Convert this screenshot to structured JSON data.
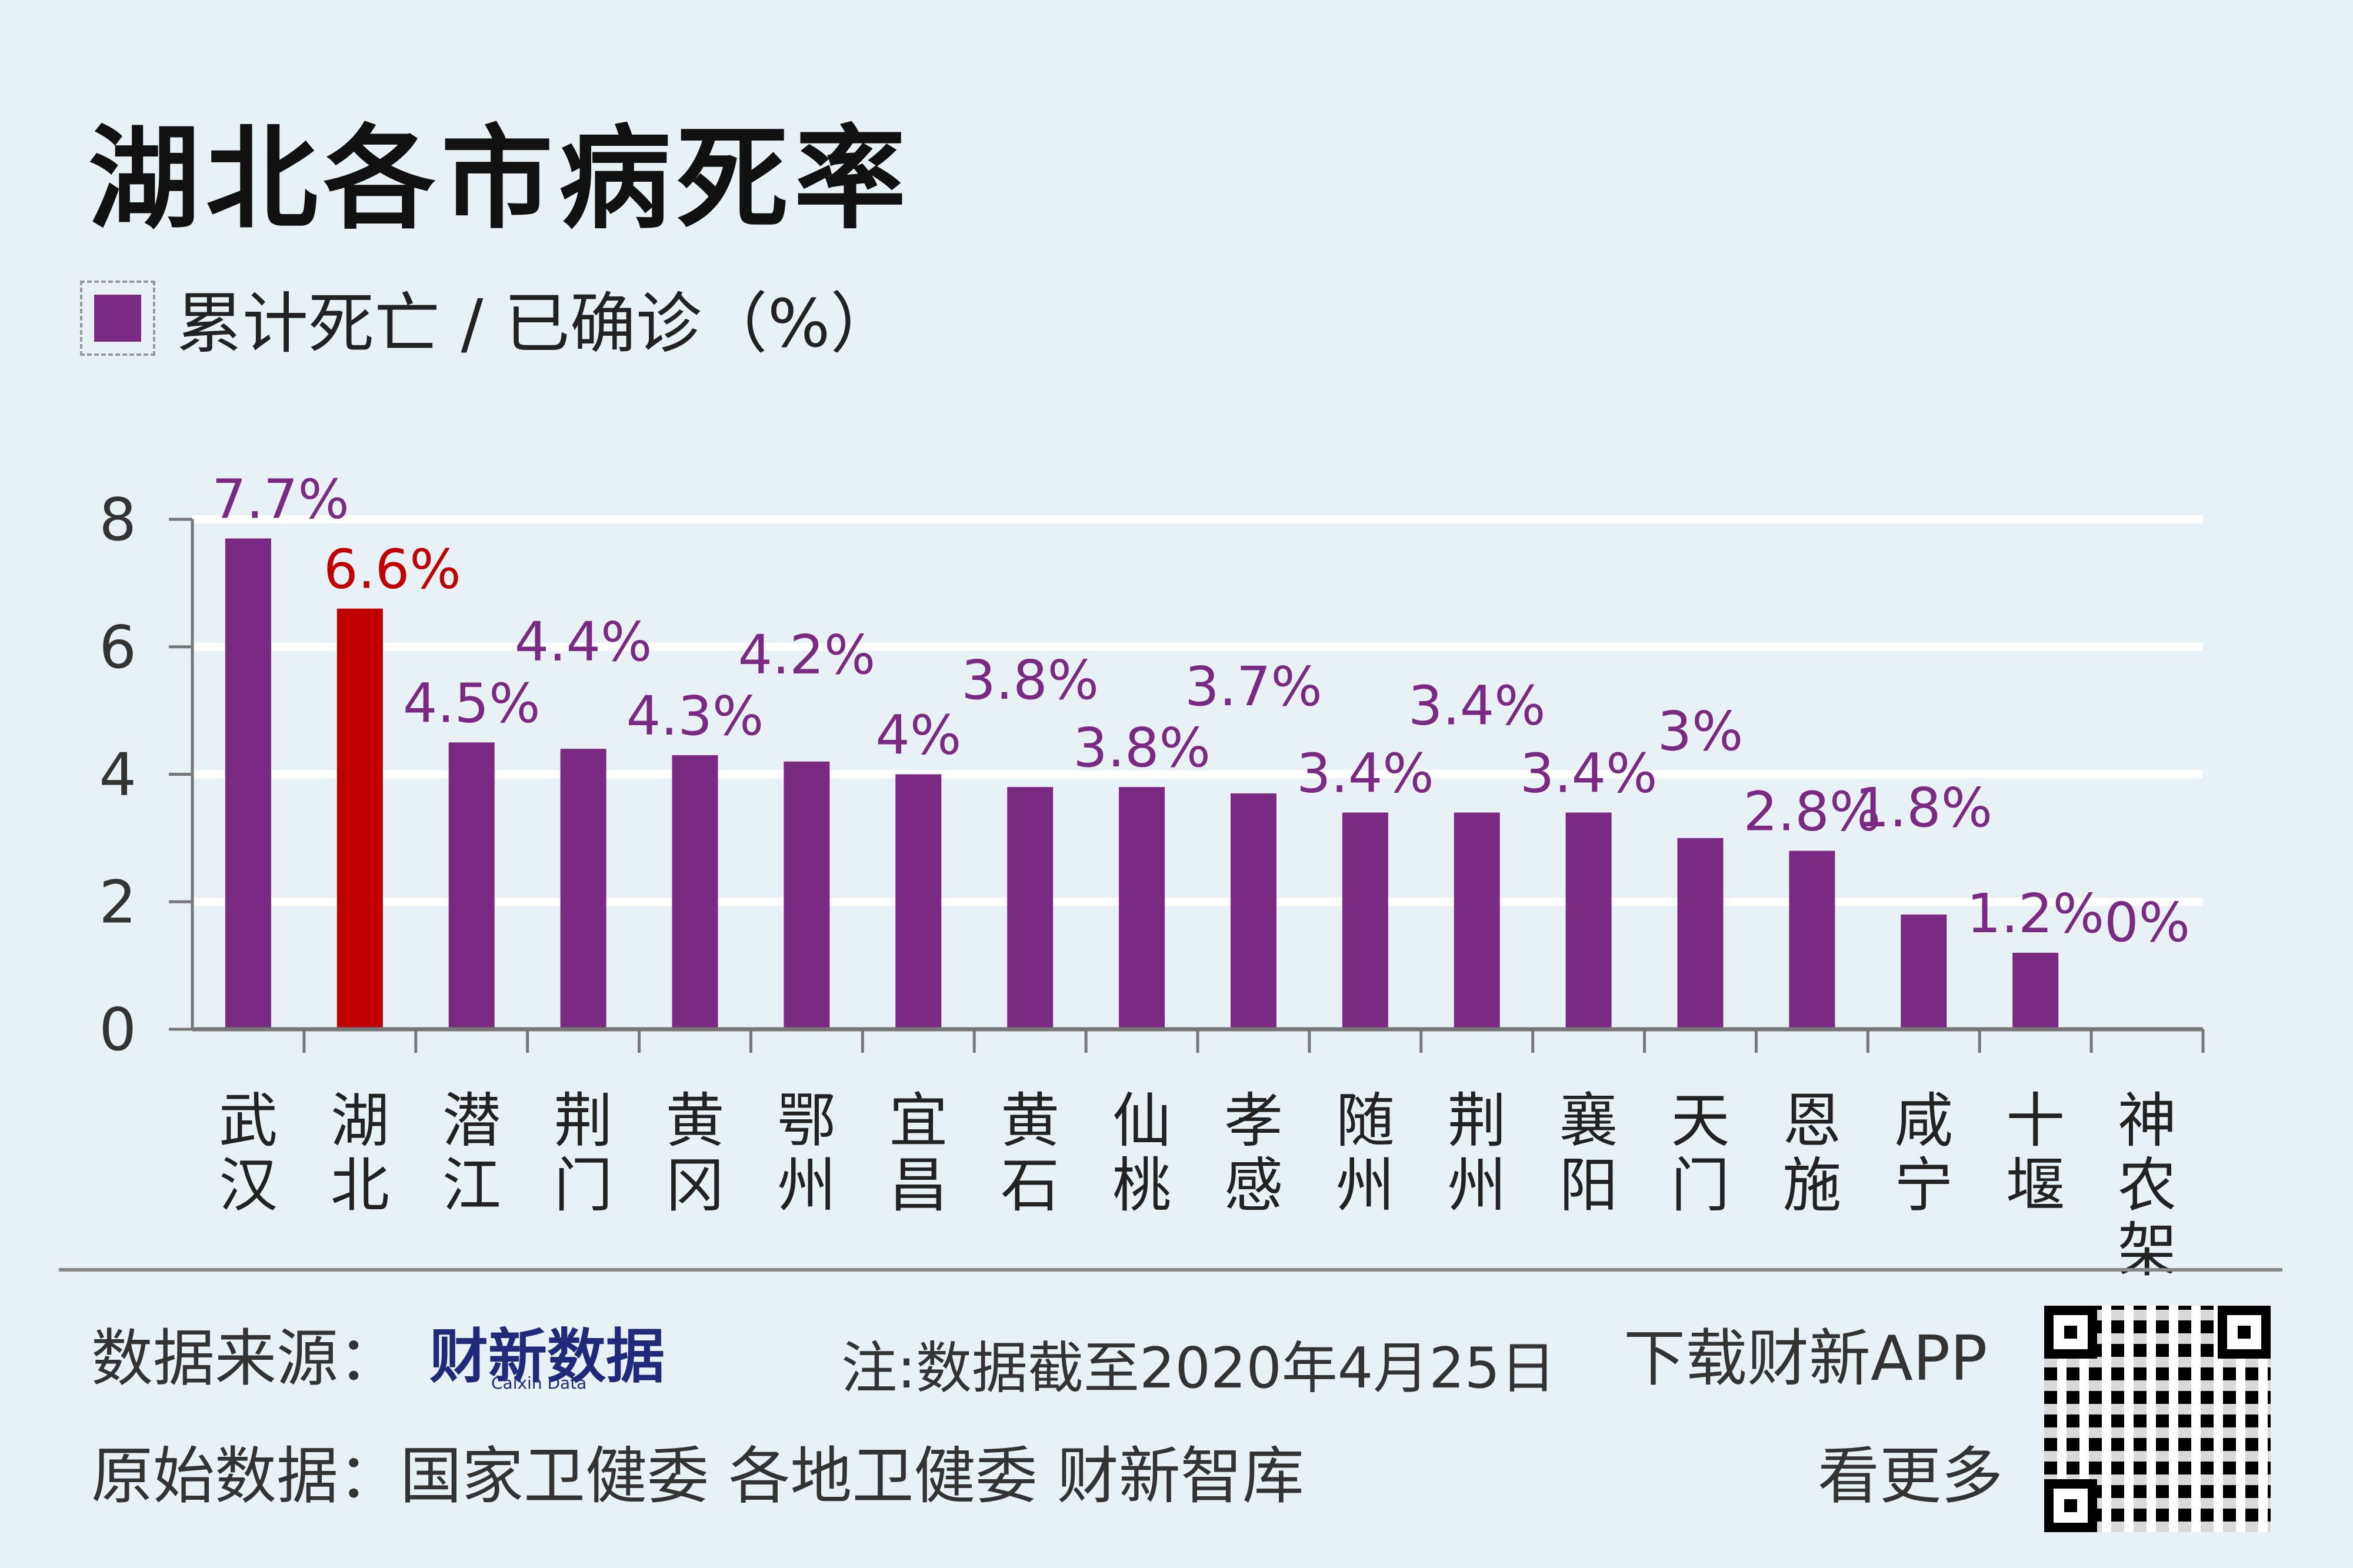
{
  "title": "湖北各市病死率",
  "legend": "累计死亡 / 已确诊（%）",
  "colors": {
    "bar": "#7b2a84",
    "highlight": "#c00000",
    "background": "#e8f1f5"
  },
  "chart_data": {
    "type": "bar",
    "title": "湖北各市病死率",
    "ylabel": "累计死亡 / 已确诊（%）",
    "xlabel": "",
    "ylim": [
      0,
      8
    ],
    "yticks": [
      "0",
      "2",
      "4",
      "6",
      "8"
    ],
    "grid": true,
    "categories": [
      "武汉",
      "湖北",
      "潜江",
      "荆门",
      "黄冈",
      "鄂州",
      "宜昌",
      "黄石",
      "仙桃",
      "孝感",
      "随州",
      "荆州",
      "襄阳",
      "天门",
      "恩施",
      "咸宁",
      "十堰",
      "神农架"
    ],
    "values": [
      7.7,
      6.6,
      4.5,
      4.4,
      4.3,
      4.2,
      4.0,
      3.8,
      3.8,
      3.7,
      3.4,
      3.4,
      3.4,
      3.0,
      2.8,
      1.8,
      1.2,
      0
    ],
    "labels": [
      "7.7%",
      "6.6%",
      "4.5%",
      "4.4%",
      "4.3%",
      "4.2%",
      "4%",
      "3.8%",
      "3.8%",
      "3.7%",
      "3.4%",
      "3.4%",
      "3.4%",
      "3%",
      "2.8%",
      "1.8%",
      "1.2%",
      "0%"
    ],
    "highlight_index": 1
  },
  "footer": {
    "source_label": "数据来源：",
    "source_logo": "财新数据",
    "source_logo_sub": "Caixin Data",
    "note": "注:数据截至2020年4月25日",
    "raw_label": "原始数据：国家卫健委 各地卫健委 财新智库",
    "app": "下载财新APP",
    "more": "看更多"
  }
}
